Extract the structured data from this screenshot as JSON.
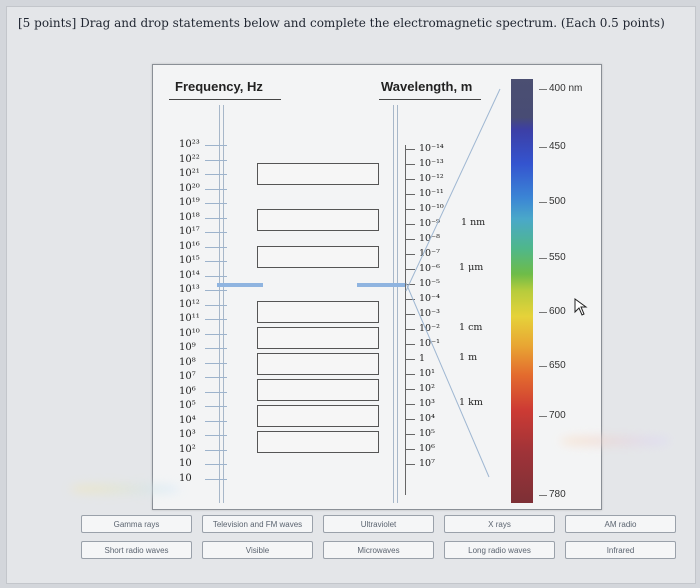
{
  "question": "[5 points] Drag and drop statements below and complete the electromagnetic spectrum. (Each 0.5 points)",
  "figure": {
    "frequency_header": "Frequency, Hz",
    "wavelength_header": "Wavelength, m",
    "frequency_labels": [
      "10²³",
      "10²²",
      "10²¹",
      "10²⁰",
      "10¹⁹",
      "10¹⁸",
      "10¹⁷",
      "10¹⁶",
      "10¹⁵",
      "10¹⁴",
      "10¹³",
      "10¹²",
      "10¹¹",
      "10¹⁰",
      "10⁹",
      "10⁸",
      "10⁷",
      "10⁶",
      "10⁵",
      "10⁴",
      "10³",
      "10²",
      "10",
      "10"
    ],
    "wavelength_labels": [
      "10⁻¹⁴",
      "10⁻¹³",
      "10⁻¹²",
      "10⁻¹¹",
      "10⁻¹⁰",
      "10⁻⁹",
      "10⁻⁸",
      "10⁻⁷",
      "10⁻⁶",
      "10⁻⁵",
      "10⁻⁴",
      "10⁻³",
      "10⁻²",
      "10⁻¹",
      "1",
      "10¹",
      "10²",
      "10³",
      "10⁴",
      "10⁵",
      "10⁶",
      "10⁷"
    ],
    "unit_labels": [
      "1 nm",
      "1 μm",
      "1 cm",
      "1 m",
      "1 km"
    ],
    "scale_labels": [
      "400 nm",
      "450",
      "500",
      "550",
      "600",
      "650",
      "700",
      "780"
    ]
  },
  "drag_items": [
    "Gamma rays",
    "Television and FM waves",
    "Ultraviolet",
    "X rays",
    "AM radio",
    "Short radio waves",
    "Visible",
    "Microwaves",
    "Long radio waves",
    "Infrared"
  ]
}
